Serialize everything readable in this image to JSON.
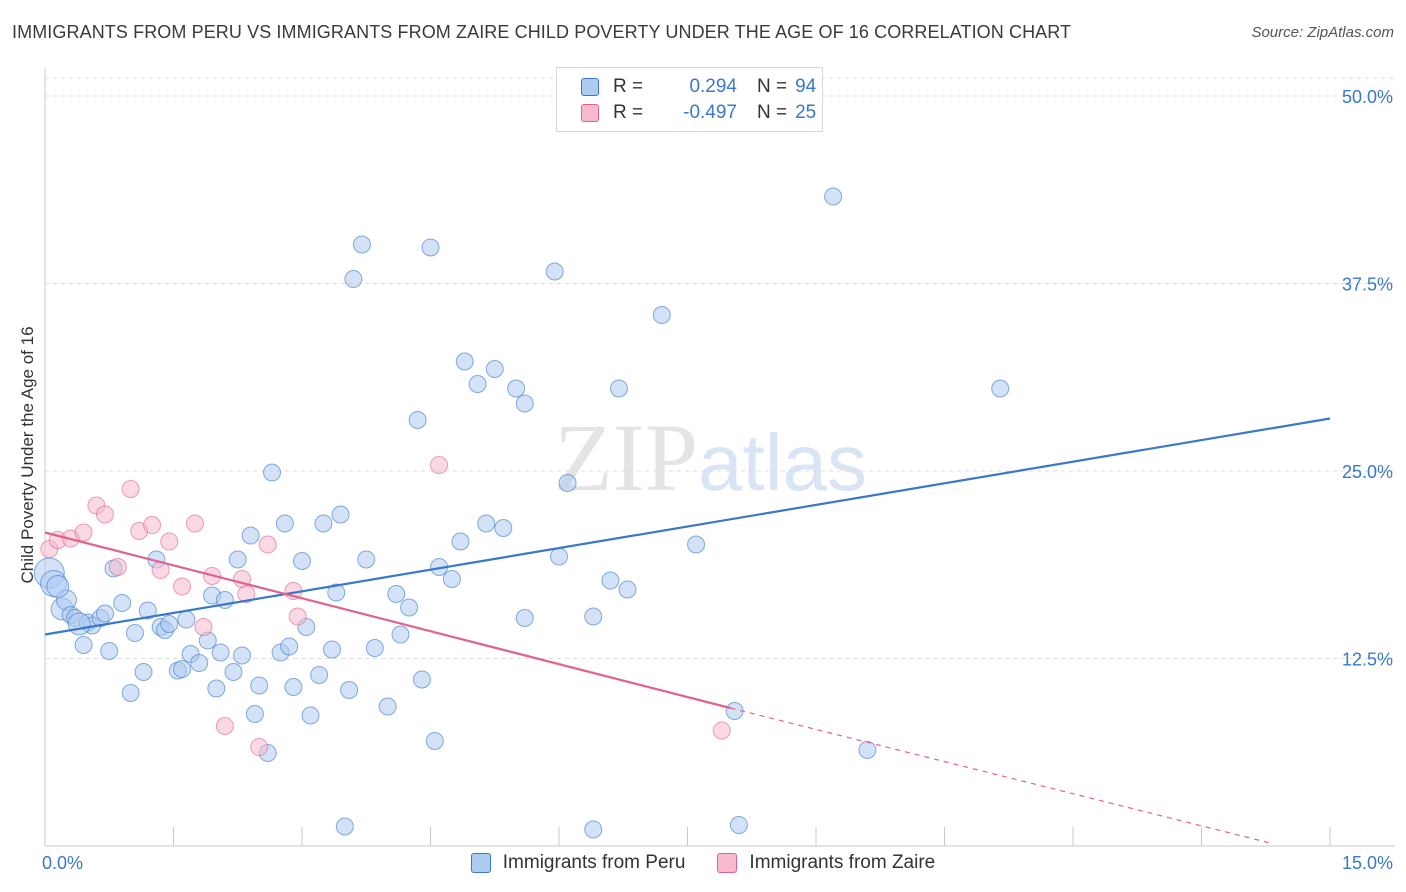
{
  "title": "IMMIGRANTS FROM PERU VS IMMIGRANTS FROM ZAIRE CHILD POVERTY UNDER THE AGE OF 16 CORRELATION CHART",
  "source": "Source: ZipAtlas.com",
  "watermark": {
    "zip": "ZIP",
    "atlas": "atlas"
  },
  "legend": {
    "rows": [
      {
        "r_label": "R =",
        "r_value": "0.294",
        "n_label": "N =",
        "n_value": "94"
      },
      {
        "r_label": "R =",
        "r_value": "-0.497",
        "n_label": "N =",
        "n_value": "25"
      }
    ]
  },
  "colors": {
    "peru": "#3a78c9",
    "peru_fill": "#aecbf0",
    "zaire": "#e0628f",
    "zaire_fill": "#f6b9cd",
    "grid": "#dcdcdc",
    "tick_text": "#3a78c9"
  },
  "chart_data": {
    "type": "scatter",
    "title": "IMMIGRANTS FROM PERU VS IMMIGRANTS FROM ZAIRE CHILD POVERTY UNDER THE AGE OF 16 CORRELATION CHART",
    "xlabel": "",
    "ylabel": "Child Poverty Under the Age of 16",
    "xlim": [
      0,
      15
    ],
    "ylim": [
      0,
      50
    ],
    "x_tick_labels": [
      "0.0%",
      "15.0%"
    ],
    "y_ticks": [
      12.5,
      25,
      37.5,
      50
    ],
    "y_tick_labels": [
      "12.5%",
      "25.0%",
      "37.5%",
      "50.0%"
    ],
    "grid": "horizontal dashed",
    "legend_position": "top-center",
    "series": [
      {
        "name": "Immigrants from Peru",
        "color": "#3a78c9",
        "trend": {
          "x": [
            0,
            15
          ],
          "y": [
            14.1,
            28.5
          ]
        },
        "points": [
          [
            0.05,
            18.2
          ],
          [
            0.1,
            17.5
          ],
          [
            0.2,
            15.8
          ],
          [
            0.25,
            16.4
          ],
          [
            0.3,
            15.4
          ],
          [
            0.35,
            15.2
          ],
          [
            0.45,
            13.4
          ],
          [
            0.5,
            14.9
          ],
          [
            0.55,
            14.7
          ],
          [
            0.65,
            15.2
          ],
          [
            0.7,
            15.5
          ],
          [
            0.75,
            13.0
          ],
          [
            0.8,
            18.5
          ],
          [
            0.9,
            16.2
          ],
          [
            1.0,
            10.2
          ],
          [
            1.05,
            14.2
          ],
          [
            1.15,
            11.6
          ],
          [
            1.2,
            15.7
          ],
          [
            1.3,
            19.1
          ],
          [
            1.35,
            14.6
          ],
          [
            1.4,
            14.4
          ],
          [
            1.45,
            14.8
          ],
          [
            1.55,
            11.7
          ],
          [
            1.6,
            11.8
          ],
          [
            1.65,
            15.1
          ],
          [
            1.7,
            12.8
          ],
          [
            1.8,
            12.2
          ],
          [
            1.9,
            13.7
          ],
          [
            1.95,
            16.7
          ],
          [
            2.0,
            10.5
          ],
          [
            2.05,
            12.9
          ],
          [
            2.1,
            16.4
          ],
          [
            2.2,
            11.6
          ],
          [
            2.25,
            19.1
          ],
          [
            2.3,
            12.7
          ],
          [
            2.4,
            20.7
          ],
          [
            2.45,
            8.8
          ],
          [
            2.5,
            10.7
          ],
          [
            2.6,
            6.2
          ],
          [
            2.65,
            24.9
          ],
          [
            2.75,
            12.9
          ],
          [
            2.8,
            21.5
          ],
          [
            2.85,
            13.3
          ],
          [
            2.9,
            10.6
          ],
          [
            3.0,
            19.0
          ],
          [
            3.05,
            14.6
          ],
          [
            3.1,
            8.7
          ],
          [
            3.2,
            11.4
          ],
          [
            3.25,
            21.5
          ],
          [
            3.35,
            13.1
          ],
          [
            3.4,
            16.9
          ],
          [
            3.45,
            22.1
          ],
          [
            3.55,
            10.4
          ],
          [
            3.6,
            37.8
          ],
          [
            3.7,
            40.1
          ],
          [
            3.75,
            19.1
          ],
          [
            3.85,
            13.2
          ],
          [
            4.0,
            9.3
          ],
          [
            4.1,
            16.8
          ],
          [
            4.15,
            14.1
          ],
          [
            4.25,
            15.9
          ],
          [
            4.35,
            28.4
          ],
          [
            4.4,
            11.1
          ],
          [
            4.5,
            39.9
          ],
          [
            4.55,
            7.0
          ],
          [
            4.6,
            18.6
          ],
          [
            4.75,
            17.8
          ],
          [
            4.85,
            20.3
          ],
          [
            4.9,
            32.3
          ],
          [
            5.05,
            30.8
          ],
          [
            5.15,
            21.5
          ],
          [
            5.25,
            31.8
          ],
          [
            5.35,
            21.2
          ],
          [
            5.5,
            30.5
          ],
          [
            5.6,
            15.2
          ],
          [
            5.6,
            29.5
          ],
          [
            5.95,
            38.3
          ],
          [
            6.0,
            19.3
          ],
          [
            6.1,
            24.2
          ],
          [
            6.4,
            15.3
          ],
          [
            6.6,
            17.7
          ],
          [
            6.7,
            30.5
          ],
          [
            6.8,
            17.1
          ],
          [
            7.2,
            35.4
          ],
          [
            7.6,
            20.1
          ],
          [
            8.05,
            9.0
          ],
          [
            8.1,
            1.4
          ],
          [
            9.2,
            43.3
          ],
          [
            9.6,
            6.4
          ],
          [
            11.15,
            30.5
          ],
          [
            3.5,
            1.3
          ],
          [
            6.4,
            1.1
          ],
          [
            0.4,
            14.8
          ],
          [
            0.15,
            17.3
          ]
        ]
      },
      {
        "name": "Immigrants from Zaire",
        "color": "#e0628f",
        "trend": {
          "x": [
            0,
            8.0
          ],
          "y": [
            20.9,
            9.2
          ]
        },
        "trend_extension": {
          "x": [
            8.0,
            15
          ],
          "y": [
            9.2,
            -1.1
          ]
        },
        "points": [
          [
            0.05,
            19.8
          ],
          [
            0.15,
            20.4
          ],
          [
            0.3,
            20.5
          ],
          [
            0.45,
            20.9
          ],
          [
            0.6,
            22.7
          ],
          [
            0.7,
            22.1
          ],
          [
            0.85,
            18.6
          ],
          [
            1.0,
            23.8
          ],
          [
            1.1,
            21.0
          ],
          [
            1.25,
            21.4
          ],
          [
            1.35,
            18.4
          ],
          [
            1.45,
            20.3
          ],
          [
            1.6,
            17.3
          ],
          [
            1.75,
            21.5
          ],
          [
            1.85,
            14.6
          ],
          [
            1.95,
            18.0
          ],
          [
            2.1,
            8.0
          ],
          [
            2.3,
            17.8
          ],
          [
            2.35,
            16.8
          ],
          [
            2.5,
            6.6
          ],
          [
            2.6,
            20.1
          ],
          [
            2.9,
            17.0
          ],
          [
            2.95,
            15.3
          ],
          [
            4.6,
            25.4
          ],
          [
            7.9,
            7.7
          ]
        ]
      }
    ]
  },
  "bottom_legend": [
    {
      "label": "Immigrants from Peru"
    },
    {
      "label": "Immigrants from Zaire"
    }
  ]
}
